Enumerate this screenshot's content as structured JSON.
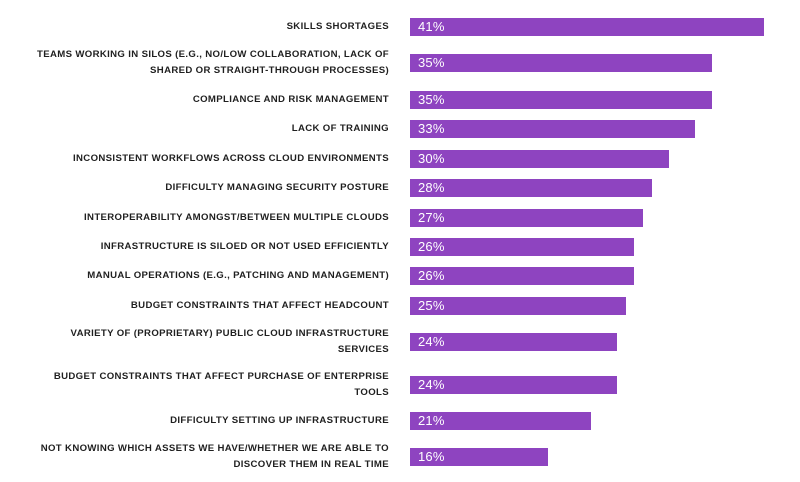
{
  "chart_data": {
    "type": "bar",
    "orientation": "horizontal",
    "categories": [
      [
        "SKILLS SHORTAGES"
      ],
      [
        "TEAMS WORKING IN SILOS (E.G., NO/LOW COLLABORATION, LACK OF",
        "SHARED OR STRAIGHT-THROUGH PROCESSES)"
      ],
      [
        "COMPLIANCE AND RISK MANAGEMENT"
      ],
      [
        "LACK OF TRAINING"
      ],
      [
        "INCONSISTENT WORKFLOWS ACROSS CLOUD ENVIRONMENTS"
      ],
      [
        "DIFFICULTY MANAGING SECURITY POSTURE"
      ],
      [
        "INTEROPERABILITY AMONGST/BETWEEN MULTIPLE CLOUDS"
      ],
      [
        "INFRASTRUCTURE IS SILOED OR NOT USED EFFICIENTLY"
      ],
      [
        "MANUAL OPERATIONS (E.G., PATCHING AND MANAGEMENT)"
      ],
      [
        "BUDGET CONSTRAINTS THAT AFFECT HEADCOUNT"
      ],
      [
        "VARIETY OF (PROPRIETARY) PUBLIC CLOUD INFRASTRUCTURE",
        "SERVICES"
      ],
      [
        "BUDGET CONSTRAINTS THAT AFFECT PURCHASE OF ENTERPRISE",
        "TOOLS"
      ],
      [
        "DIFFICULTY SETTING UP INFRASTRUCTURE"
      ],
      [
        "NOT KNOWING WHICH ASSETS WE HAVE/WHETHER WE ARE ABLE TO",
        "DISCOVER THEM IN REAL TIME"
      ]
    ],
    "values": [
      41,
      35,
      35,
      33,
      30,
      28,
      27,
      26,
      26,
      25,
      24,
      24,
      21,
      16
    ],
    "value_labels": [
      "41%",
      "35%",
      "35%",
      "33%",
      "30%",
      "28%",
      "27%",
      "26%",
      "26%",
      "25%",
      "24%",
      "24%",
      "21%",
      "16%"
    ],
    "xlim": [
      0,
      41
    ],
    "grid": false,
    "legend": "none",
    "title": "",
    "xlabel": "",
    "ylabel": "",
    "bar_color": "#8e44c0",
    "label_color": "#1f1f1f",
    "value_label_color": "#ffffff"
  }
}
